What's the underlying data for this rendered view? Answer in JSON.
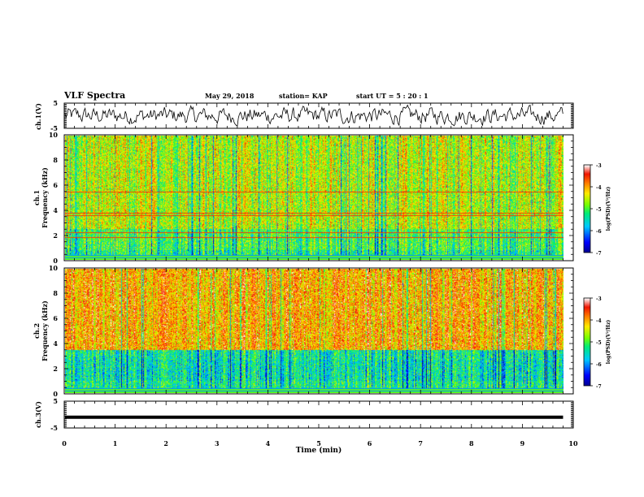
{
  "header": {
    "title": "VLF Spectra",
    "date": "May 29, 2018",
    "station": "station= KAP",
    "start": "start  UT =   5 : 20 : 1"
  },
  "chart_data": [
    {
      "type": "line",
      "name": "waveform-ch1",
      "ylabel": "ch.1(V)",
      "ylim": [
        -5,
        5
      ],
      "yticks": [
        "5",
        "-5"
      ],
      "xlim": [
        0,
        10
      ],
      "x_extent": 9.8,
      "description_values": {
        "amplitude_approx": 2.5
      }
    },
    {
      "type": "heatmap",
      "name": "spectrogram-ch1",
      "ylabel_line1": "ch.1",
      "ylabel_line2": "Frequency  (kHz)",
      "ylim": [
        0,
        10
      ],
      "yticks": [
        "0",
        "2",
        "4",
        "6",
        "8",
        "10"
      ],
      "xlim": [
        0,
        10
      ],
      "x_extent": 9.8,
      "colorbar": {
        "label": "log(PSD)(V²/Hz)",
        "range": [
          -7,
          -3
        ],
        "ticks": [
          "-3",
          "-4",
          "-5",
          "-6",
          "-7"
        ]
      },
      "bands_khz": [
        1.8,
        2.2,
        3.6,
        3.8,
        5.5
      ]
    },
    {
      "type": "heatmap",
      "name": "spectrogram-ch2",
      "ylabel_line1": "ch.2",
      "ylabel_line2": "Frequency  (kHz)",
      "ylim": [
        0,
        10
      ],
      "yticks": [
        "0",
        "2",
        "4",
        "6",
        "8",
        "10"
      ],
      "xlim": [
        0,
        10
      ],
      "x_extent": 9.8,
      "colorbar": {
        "label": "log(PSD)(V²/Hz)",
        "range": [
          -7,
          -3
        ],
        "ticks": [
          "-3",
          "-4",
          "-5",
          "-6",
          "-7"
        ]
      }
    },
    {
      "type": "line",
      "name": "waveform-ch3",
      "ylabel": "ch.3(V)",
      "ylim": [
        -5,
        5
      ],
      "yticks": [
        "5",
        "-5"
      ],
      "xlim": [
        0,
        10
      ],
      "x_extent": 9.8,
      "constant_value": -1,
      "xlabel": "Time  (min)",
      "xticks": [
        "0",
        "1",
        "2",
        "3",
        "4",
        "5",
        "6",
        "7",
        "8",
        "9",
        "10"
      ]
    }
  ]
}
